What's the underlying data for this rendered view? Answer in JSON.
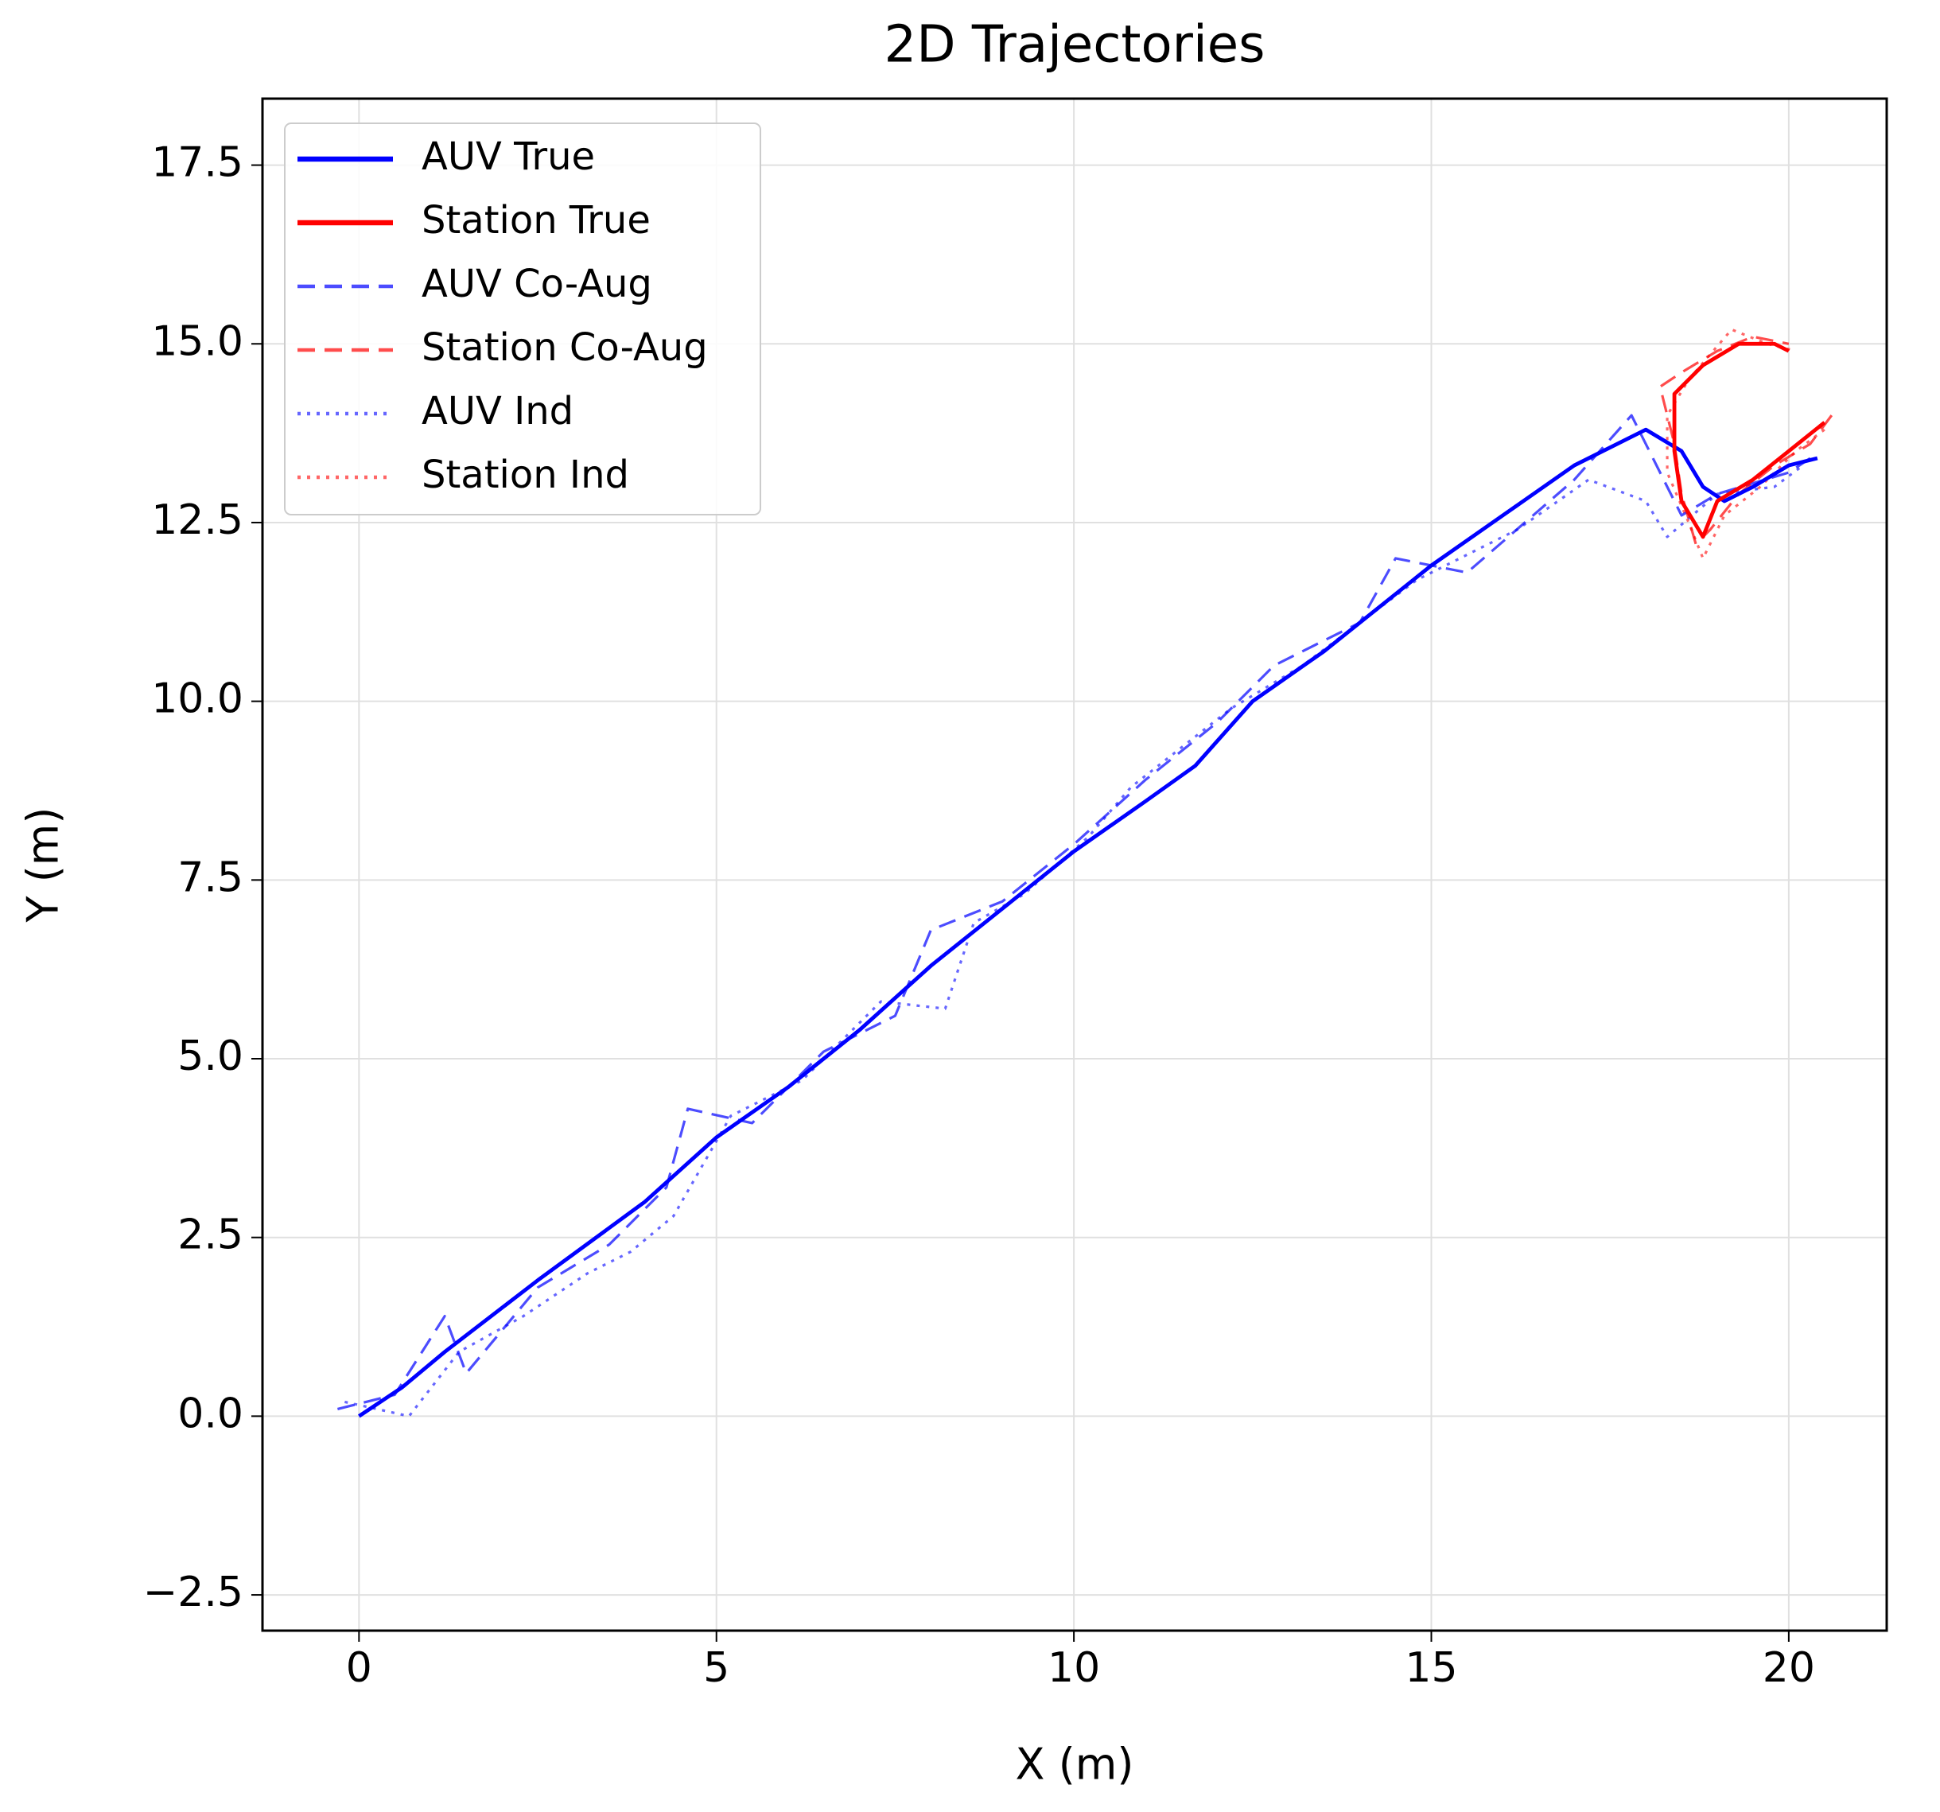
{
  "chart_data": {
    "type": "line",
    "title": "2D Trajectories",
    "x_label": "X (m)",
    "y_label": "Y (m)",
    "xlim": [
      -1.35,
      21.37
    ],
    "ylim": [
      -3.0,
      18.43
    ],
    "xticks": [
      0,
      5,
      10,
      15,
      20
    ],
    "yticks": [
      {
        "value": -2.5,
        "label": "−2.5"
      },
      {
        "value": 0,
        "label": "0.0"
      },
      2.5,
      {
        "value": 5,
        "label": "5.0"
      },
      7.5,
      {
        "value": 10,
        "label": "10.0"
      },
      12.5,
      {
        "value": 15,
        "label": "15.0"
      },
      17.5
    ],
    "grid": true,
    "legend": "upper left",
    "series": [
      {
        "name": "AUV True",
        "color": "#0000ff",
        "dash": "solid",
        "width": 3,
        "alpha": 1,
        "x": [
          0,
          0.6,
          1.2,
          2.5,
          4,
          5,
          6,
          7,
          8,
          9,
          10,
          11,
          11.7,
          12.5,
          13.5,
          15,
          16,
          17,
          18,
          18.5,
          18.8,
          19.1,
          19.5,
          20,
          20.4
        ],
        "y": [
          0,
          0.4,
          0.9,
          1.9,
          3,
          3.9,
          4.6,
          5.4,
          6.3,
          7.1,
          7.9,
          8.6,
          9.1,
          10,
          10.7,
          11.9,
          12.6,
          13.3,
          13.8,
          13.5,
          13,
          12.8,
          13,
          13.3,
          13.4
        ]
      },
      {
        "name": "Station True",
        "color": "#ff0000",
        "dash": "solid",
        "width": 3,
        "alpha": 1,
        "x": [
          20.5,
          20.0,
          19.5,
          19.0,
          18.8,
          18.5,
          18.4,
          18.4,
          18.8,
          19.3,
          19.8,
          20.0
        ],
        "y": [
          13.9,
          13.5,
          13.1,
          12.8,
          12.3,
          12.8,
          13.5,
          14.3,
          14.7,
          15.0,
          15.0,
          14.9
        ]
      },
      {
        "name": "AUV Co-Aug",
        "color": "#0000ff",
        "dash": "dashed",
        "width": 2,
        "alpha": 0.7,
        "x": [
          -0.3,
          0.5,
          1.2,
          1.5,
          2.5,
          3.5,
          4.3,
          4.6,
          5.5,
          6.5,
          7.5,
          8,
          9,
          10,
          11,
          12,
          12.8,
          14,
          14.5,
          15.5,
          17,
          17.8,
          18.5,
          19,
          20,
          20.3
        ],
        "y": [
          0.1,
          0.3,
          1.4,
          0.6,
          1.8,
          2.4,
          3.2,
          4.3,
          4.1,
          5.1,
          5.6,
          6.8,
          7.2,
          8.0,
          8.9,
          9.7,
          10.5,
          11.1,
          12.0,
          11.8,
          13.1,
          14.0,
          12.6,
          12.9,
          13.2,
          13.4
        ]
      },
      {
        "name": "Station Co-Aug",
        "color": "#ff0000",
        "dash": "dashed",
        "width": 2,
        "alpha": 0.7,
        "x": [
          20.6,
          20.3,
          19.8,
          19.3,
          18.9,
          18.7,
          18.5,
          18.4,
          18.2,
          18.5,
          19.0,
          19.5,
          20.0
        ],
        "y": [
          14.0,
          13.6,
          13.3,
          12.9,
          12.4,
          12.2,
          12.9,
          13.6,
          14.4,
          14.6,
          14.9,
          15.1,
          15.0
        ]
      },
      {
        "name": "AUV Ind",
        "color": "#0000ff",
        "dash": "dotted",
        "width": 2,
        "alpha": 0.6,
        "x": [
          -0.2,
          0.7,
          1.4,
          2.3,
          3.2,
          3.8,
          4.4,
          5.2,
          6.2,
          7.3,
          8.2,
          8.6,
          9.3,
          10.2,
          10.8,
          12.2,
          13.2,
          14.8,
          16.2,
          17.2,
          18.0,
          18.3,
          19.0,
          19.8,
          20.2
        ],
        "y": [
          0.2,
          0.0,
          0.9,
          1.4,
          2.0,
          2.3,
          2.8,
          4.2,
          4.7,
          5.8,
          5.7,
          6.9,
          7.3,
          8.1,
          8.8,
          9.9,
          10.5,
          11.7,
          12.4,
          13.1,
          12.8,
          12.3,
          12.9,
          13.0,
          13.3
        ]
      },
      {
        "name": "Station Ind",
        "color": "#ff0000",
        "dash": "dotted",
        "width": 2,
        "alpha": 0.6,
        "x": [
          20.5,
          20.1,
          19.6,
          19.1,
          18.8,
          18.6,
          18.3,
          18.3,
          18.6,
          19.2,
          19.7,
          20.1
        ],
        "y": [
          13.8,
          13.5,
          13.0,
          12.6,
          12.0,
          12.5,
          13.2,
          14.0,
          14.5,
          15.2,
          15.0,
          14.9
        ]
      }
    ]
  }
}
